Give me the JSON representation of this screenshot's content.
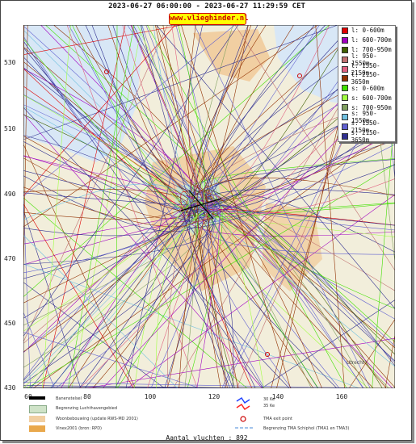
{
  "header": {
    "title": "2023-06-27 06:00:00 - 2023-06-27 11:29:59 CET",
    "site": "www.vlieghinder.nl"
  },
  "axes": {
    "y_ticks": [
      "530",
      "510",
      "490",
      "470",
      "450",
      "430"
    ],
    "x_ticks": [
      "60",
      "80",
      "100",
      "120",
      "140",
      "160"
    ],
    "x_range": [
      60,
      174
    ],
    "y_range": [
      430,
      540
    ]
  },
  "legend": [
    {
      "label": "l: 0-600m",
      "color": "#e00000"
    },
    {
      "label": "l: 600-700m",
      "color": "#a000c0"
    },
    {
      "label": "l: 700-950m",
      "color": "#406000"
    },
    {
      "label": "l: 950-1550m",
      "color": "#c07070"
    },
    {
      "label": "l: 1550-2150m",
      "color": "#e06080"
    },
    {
      "label": "l: 2150-3650m",
      "color": "#903000"
    },
    {
      "label": "s: 0-600m",
      "color": "#40e000"
    },
    {
      "label": "s: 600-700m",
      "color": "#a0ff40"
    },
    {
      "label": "s: 700-950m",
      "color": "#80a060"
    },
    {
      "label": "s: 950-1550m",
      "color": "#70c0e0"
    },
    {
      "label": "s: 1550-2150m",
      "color": "#6060d0"
    },
    {
      "label": "s: 2150-3650m",
      "color": "#303090"
    }
  ],
  "key": {
    "runway": "Banenstelsel",
    "airport_boundary": "Begrenzing Luchthavengebied",
    "housing": "Woonbebouwing (update RWS-MD 2001)",
    "vinex": "Vinex2001 (bron: RPD)",
    "noise_30": "30 Ke",
    "noise_35": "35 Ke",
    "tma_exit": "TMA exit point",
    "tma_boundary": "Begrenzing TMA Schiphol  (TMA1 en TMA3)"
  },
  "footer": {
    "count": "Aantal vluchten : 892"
  },
  "map_labels": {
    "town": "Utrecht"
  },
  "colors": {
    "sea": "#d8e7f6",
    "land": "#f2eedb",
    "urban": "#f1cfa2"
  }
}
